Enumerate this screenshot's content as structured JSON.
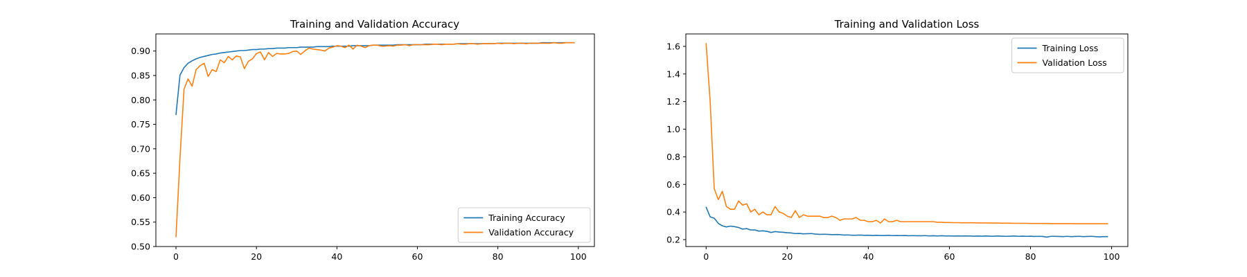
{
  "chart_data": [
    {
      "type": "line",
      "title": "Training and Validation Accuracy",
      "xlabel": "",
      "ylabel": "",
      "xlim": [
        -5,
        104
      ],
      "ylim": [
        0.5,
        0.935
      ],
      "xticks": [
        0,
        20,
        40,
        60,
        80,
        100
      ],
      "xtick_labels": [
        "0",
        "20",
        "40",
        "60",
        "80",
        "100"
      ],
      "yticks": [
        0.5,
        0.55,
        0.6,
        0.65,
        0.7,
        0.75,
        0.8,
        0.85,
        0.9
      ],
      "ytick_labels": [
        "0.50",
        "0.55",
        "0.60",
        "0.65",
        "0.70",
        "0.75",
        "0.80",
        "0.85",
        "0.90"
      ],
      "grid": false,
      "legend_position": "lower-right",
      "series": [
        {
          "name": "Training Accuracy",
          "color": "#1f77b4",
          "x": [
            0,
            1,
            2,
            3,
            4,
            5,
            6,
            7,
            8,
            9,
            10,
            11,
            12,
            13,
            14,
            15,
            16,
            17,
            18,
            19,
            20,
            21,
            22,
            23,
            24,
            25,
            26,
            27,
            28,
            29,
            30,
            31,
            32,
            33,
            34,
            35,
            36,
            37,
            38,
            39,
            40,
            41,
            42,
            43,
            44,
            45,
            46,
            47,
            48,
            49,
            50,
            51,
            52,
            53,
            54,
            55,
            56,
            57,
            58,
            59,
            60,
            61,
            62,
            63,
            64,
            65,
            66,
            67,
            68,
            69,
            70,
            71,
            72,
            73,
            74,
            75,
            76,
            77,
            78,
            79,
            80,
            81,
            82,
            83,
            84,
            85,
            86,
            87,
            88,
            89,
            90,
            91,
            92,
            93,
            94,
            95,
            96,
            97,
            98,
            99
          ],
          "y": [
            0.77,
            0.851,
            0.866,
            0.875,
            0.88,
            0.884,
            0.887,
            0.889,
            0.891,
            0.893,
            0.894,
            0.896,
            0.897,
            0.898,
            0.899,
            0.9,
            0.901,
            0.901,
            0.902,
            0.903,
            0.903,
            0.904,
            0.904,
            0.905,
            0.905,
            0.906,
            0.906,
            0.906,
            0.907,
            0.907,
            0.907,
            0.908,
            0.908,
            0.908,
            0.908,
            0.909,
            0.909,
            0.909,
            0.909,
            0.91,
            0.91,
            0.91,
            0.91,
            0.91,
            0.911,
            0.911,
            0.911,
            0.911,
            0.911,
            0.912,
            0.912,
            0.912,
            0.912,
            0.912,
            0.912,
            0.913,
            0.913,
            0.913,
            0.913,
            0.913,
            0.913,
            0.913,
            0.914,
            0.914,
            0.914,
            0.914,
            0.914,
            0.914,
            0.914,
            0.914,
            0.915,
            0.915,
            0.915,
            0.915,
            0.915,
            0.915,
            0.915,
            0.915,
            0.915,
            0.915,
            0.916,
            0.916,
            0.916,
            0.916,
            0.916,
            0.916,
            0.916,
            0.916,
            0.916,
            0.916,
            0.916,
            0.917,
            0.917,
            0.917,
            0.917,
            0.917,
            0.917,
            0.917,
            0.917,
            0.917
          ]
        },
        {
          "name": "Validation Accuracy",
          "color": "#ff7f0e",
          "x": [
            0,
            1,
            2,
            3,
            4,
            5,
            6,
            7,
            8,
            9,
            10,
            11,
            12,
            13,
            14,
            15,
            16,
            17,
            18,
            19,
            20,
            21,
            22,
            23,
            24,
            25,
            26,
            27,
            28,
            29,
            30,
            31,
            32,
            33,
            34,
            35,
            36,
            37,
            38,
            39,
            40,
            41,
            42,
            43,
            44,
            45,
            46,
            47,
            48,
            49,
            50,
            51,
            52,
            53,
            54,
            55,
            56,
            57,
            58,
            59,
            60,
            61,
            62,
            63,
            64,
            65,
            66,
            67,
            68,
            69,
            70,
            71,
            72,
            73,
            74,
            75,
            76,
            77,
            78,
            79,
            80,
            81,
            82,
            83,
            84,
            85,
            86,
            87,
            88,
            89,
            90,
            91,
            92,
            93,
            94,
            95,
            96,
            97,
            98,
            99
          ],
          "y": [
            0.52,
            0.682,
            0.822,
            0.843,
            0.828,
            0.862,
            0.87,
            0.875,
            0.848,
            0.862,
            0.858,
            0.882,
            0.876,
            0.889,
            0.882,
            0.89,
            0.888,
            0.864,
            0.879,
            0.884,
            0.895,
            0.898,
            0.882,
            0.897,
            0.889,
            0.895,
            0.894,
            0.894,
            0.895,
            0.899,
            0.9,
            0.893,
            0.9,
            0.906,
            0.904,
            0.903,
            0.902,
            0.9,
            0.906,
            0.908,
            0.911,
            0.91,
            0.907,
            0.912,
            0.904,
            0.912,
            0.91,
            0.907,
            0.911,
            0.912,
            0.912,
            0.91,
            0.91,
            0.911,
            0.91,
            0.912,
            0.912,
            0.913,
            0.911,
            0.913,
            0.913,
            0.913,
            0.913,
            0.913,
            0.914,
            0.914,
            0.913,
            0.914,
            0.914,
            0.914,
            0.915,
            0.914,
            0.914,
            0.915,
            0.915,
            0.914,
            0.915,
            0.915,
            0.915,
            0.915,
            0.916,
            0.915,
            0.916,
            0.916,
            0.915,
            0.916,
            0.916,
            0.915,
            0.916,
            0.916,
            0.916,
            0.916,
            0.916,
            0.916,
            0.917,
            0.916,
            0.916,
            0.917,
            0.917,
            0.917
          ]
        }
      ]
    },
    {
      "type": "line",
      "title": "Training and Validation Loss",
      "xlabel": "",
      "ylabel": "",
      "xlim": [
        -5,
        104
      ],
      "ylim": [
        0.15,
        1.69
      ],
      "xticks": [
        0,
        20,
        40,
        60,
        80,
        100
      ],
      "xtick_labels": [
        "0",
        "20",
        "40",
        "60",
        "80",
        "100"
      ],
      "yticks": [
        0.2,
        0.4,
        0.6,
        0.8,
        1.0,
        1.2,
        1.4,
        1.6
      ],
      "ytick_labels": [
        "0.2",
        "0.4",
        "0.6",
        "0.8",
        "1.0",
        "1.2",
        "1.4",
        "1.6"
      ],
      "grid": false,
      "legend_position": "upper-right",
      "series": [
        {
          "name": "Training Loss",
          "color": "#1f77b4",
          "x": [
            0,
            1,
            2,
            3,
            4,
            5,
            6,
            7,
            8,
            9,
            10,
            11,
            12,
            13,
            14,
            15,
            16,
            17,
            18,
            19,
            20,
            21,
            22,
            23,
            24,
            25,
            26,
            27,
            28,
            29,
            30,
            31,
            32,
            33,
            34,
            35,
            36,
            37,
            38,
            39,
            40,
            41,
            42,
            43,
            44,
            45,
            46,
            47,
            48,
            49,
            50,
            51,
            52,
            53,
            54,
            55,
            56,
            57,
            58,
            59,
            60,
            61,
            62,
            63,
            64,
            65,
            66,
            67,
            68,
            69,
            70,
            71,
            72,
            73,
            74,
            75,
            76,
            77,
            78,
            79,
            80,
            81,
            82,
            83,
            84,
            85,
            86,
            87,
            88,
            89,
            90,
            91,
            92,
            93,
            94,
            95,
            96,
            97,
            98,
            99
          ],
          "y": [
            0.435,
            0.365,
            0.355,
            0.318,
            0.3,
            0.292,
            0.298,
            0.294,
            0.288,
            0.276,
            0.28,
            0.27,
            0.27,
            0.262,
            0.264,
            0.26,
            0.252,
            0.258,
            0.255,
            0.253,
            0.25,
            0.248,
            0.244,
            0.245,
            0.242,
            0.243,
            0.244,
            0.24,
            0.238,
            0.239,
            0.238,
            0.236,
            0.237,
            0.236,
            0.233,
            0.234,
            0.232,
            0.232,
            0.233,
            0.231,
            0.232,
            0.23,
            0.231,
            0.23,
            0.23,
            0.231,
            0.229,
            0.23,
            0.229,
            0.23,
            0.228,
            0.229,
            0.228,
            0.228,
            0.229,
            0.227,
            0.228,
            0.227,
            0.228,
            0.227,
            0.227,
            0.226,
            0.227,
            0.226,
            0.227,
            0.226,
            0.225,
            0.226,
            0.225,
            0.226,
            0.225,
            0.225,
            0.226,
            0.225,
            0.224,
            0.225,
            0.226,
            0.224,
            0.225,
            0.224,
            0.225,
            0.223,
            0.224,
            0.223,
            0.218,
            0.224,
            0.224,
            0.223,
            0.222,
            0.224,
            0.222,
            0.223,
            0.224,
            0.222,
            0.223,
            0.224,
            0.222,
            0.22,
            0.222,
            0.222
          ]
        },
        {
          "name": "Validation Loss",
          "color": "#ff7f0e",
          "x": [
            0,
            1,
            2,
            3,
            4,
            5,
            6,
            7,
            8,
            9,
            10,
            11,
            12,
            13,
            14,
            15,
            16,
            17,
            18,
            19,
            20,
            21,
            22,
            23,
            24,
            25,
            26,
            27,
            28,
            29,
            30,
            31,
            32,
            33,
            34,
            35,
            36,
            37,
            38,
            39,
            40,
            41,
            42,
            43,
            44,
            45,
            46,
            47,
            48,
            49,
            50,
            51,
            52,
            53,
            54,
            55,
            56,
            57,
            58,
            59,
            60,
            61,
            62,
            63,
            64,
            65,
            66,
            67,
            68,
            69,
            70,
            71,
            72,
            73,
            74,
            75,
            76,
            77,
            78,
            79,
            80,
            81,
            82,
            83,
            84,
            85,
            86,
            87,
            88,
            89,
            90,
            91,
            92,
            93,
            94,
            95,
            96,
            97,
            98,
            99
          ],
          "y": [
            1.62,
            1.2,
            0.57,
            0.49,
            0.55,
            0.44,
            0.42,
            0.42,
            0.48,
            0.45,
            0.46,
            0.4,
            0.42,
            0.38,
            0.4,
            0.38,
            0.38,
            0.44,
            0.4,
            0.39,
            0.37,
            0.36,
            0.41,
            0.36,
            0.38,
            0.37,
            0.37,
            0.37,
            0.37,
            0.36,
            0.36,
            0.37,
            0.36,
            0.34,
            0.35,
            0.35,
            0.35,
            0.36,
            0.34,
            0.34,
            0.33,
            0.33,
            0.34,
            0.32,
            0.35,
            0.33,
            0.33,
            0.34,
            0.33,
            0.33,
            0.33,
            0.33,
            0.33,
            0.33,
            0.33,
            0.33,
            0.33,
            0.326,
            0.326,
            0.324,
            0.324,
            0.323,
            0.323,
            0.322,
            0.322,
            0.322,
            0.322,
            0.321,
            0.321,
            0.321,
            0.32,
            0.32,
            0.32,
            0.319,
            0.319,
            0.319,
            0.318,
            0.318,
            0.318,
            0.318,
            0.317,
            0.317,
            0.317,
            0.317,
            0.317,
            0.316,
            0.316,
            0.316,
            0.316,
            0.316,
            0.316,
            0.315,
            0.315,
            0.315,
            0.315,
            0.315,
            0.315,
            0.315,
            0.315,
            0.315
          ]
        }
      ]
    }
  ]
}
